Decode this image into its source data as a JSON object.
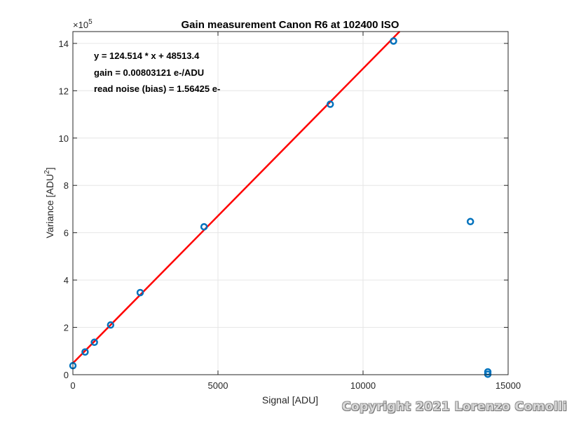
{
  "chart_data": {
    "type": "scatter",
    "title": "Gain measurement Canon R6 at 102400 ISO",
    "xlabel": "Signal [ADU]",
    "ylabel_main": "Variance [ADU",
    "ylabel_sup": "2",
    "ylabel_end": "]",
    "y_exponent_base": "×10",
    "y_exponent_power": "5",
    "xlim": [
      0,
      15000
    ],
    "ylim": [
      0,
      1450000
    ],
    "x_ticks": [
      0,
      5000,
      10000,
      15000
    ],
    "x_tick_labels": [
      "0",
      "5000",
      "10000",
      "15000"
    ],
    "y_ticks": [
      0,
      200000,
      400000,
      600000,
      800000,
      1000000,
      1200000,
      1400000
    ],
    "y_tick_labels": [
      "0",
      "2",
      "4",
      "6",
      "8",
      "10",
      "12",
      "14"
    ],
    "grid": true,
    "series": [
      {
        "color": "#0072BD",
        "marker": "circle",
        "x": [
          0,
          420,
          740,
          1300,
          2320,
          4520,
          8870,
          11050,
          13700,
          14300,
          14300
        ],
        "y": [
          38000,
          96000,
          137000,
          210000,
          347000,
          625000,
          1143000,
          1410000,
          647000,
          12000,
          2000
        ]
      }
    ],
    "fit_line": {
      "color": "#FF0000",
      "slope": 124.514,
      "intercept": 48513.4,
      "x_range": [
        0,
        11260
      ]
    },
    "annotations": [
      "y = 124.514 * x + 48513.4",
      "gain = 0.00803121 e-/ADU",
      "read noise (bias) = 1.56425 e-"
    ]
  },
  "watermark": "Copyright 2021 Lorenzo Comolli"
}
